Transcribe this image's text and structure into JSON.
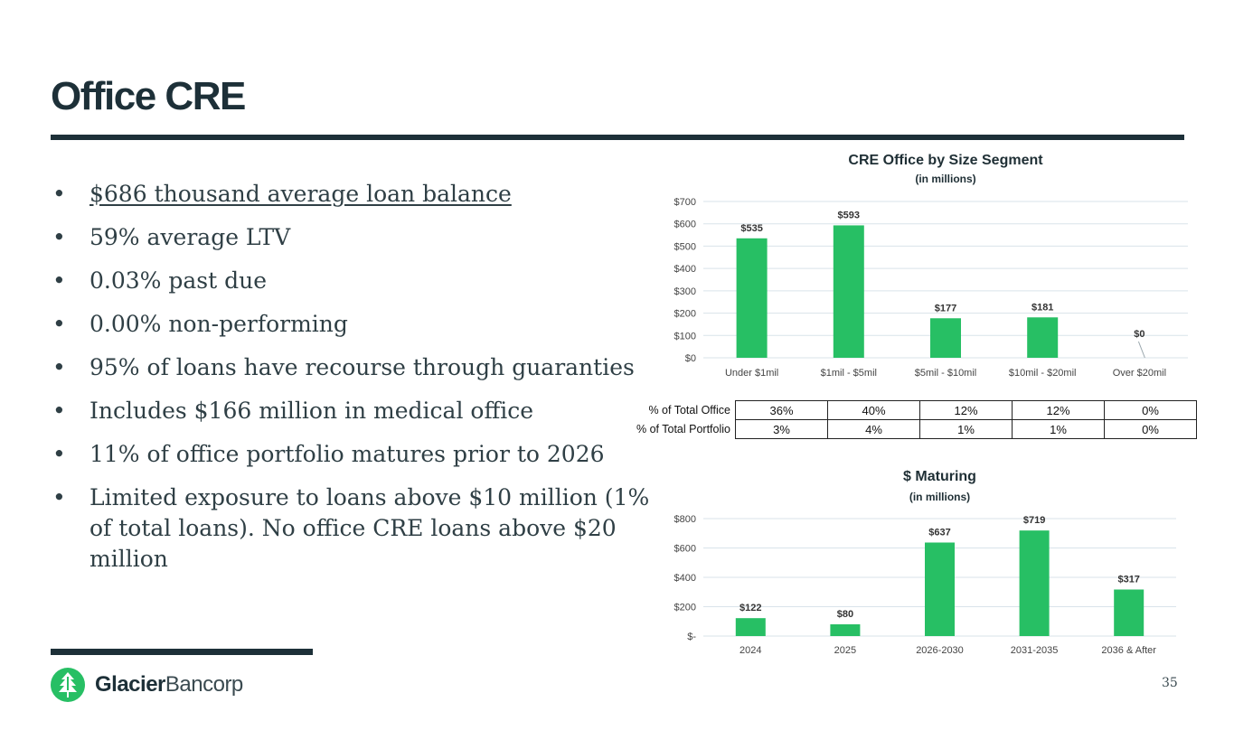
{
  "page": {
    "title": "Office CRE",
    "page_number": "35"
  },
  "bullets": [
    "$686 thousand average loan balance",
    "59% average LTV",
    "0.03% past due",
    "0.00% non-performing",
    "95% of loans have recourse through guaranties",
    "Includes $166 million in medical office",
    "11% of office portfolio matures prior to 2026",
    "Limited exposure to loans above $10 million (1% of total loans). No office CRE loans above $20 million"
  ],
  "bullet_symbol": "•",
  "logo": {
    "brand_bold": "Glacier",
    "brand_light": "Bancorp",
    "brand_color": "#27bf64"
  },
  "colors": {
    "bar": "#27bf64",
    "navy": "#1d3038"
  },
  "chart_data": [
    {
      "type": "bar",
      "title": "CRE Office by Size Segment",
      "subtitle": "(in millions)",
      "categories": [
        "Under $1mil",
        "$1mil - $5mil",
        "$5mil - $10mil",
        "$10mil - $20mil",
        "Over $20mil"
      ],
      "values": [
        535,
        593,
        177,
        181,
        0
      ],
      "data_labels": [
        "$535",
        "$593",
        "$177",
        "$181",
        "$0"
      ],
      "ylim": [
        0,
        700
      ],
      "yticks": [
        0,
        100,
        200,
        300,
        400,
        500,
        600,
        700
      ],
      "ytick_labels": [
        "$0",
        "$100",
        "$200",
        "$300",
        "$400",
        "$500",
        "$600",
        "$700"
      ],
      "grid": true,
      "xlabel": "",
      "ylabel": ""
    },
    {
      "type": "bar",
      "title": "$ Maturing",
      "subtitle": "(in millions)",
      "categories": [
        "2024",
        "2025",
        "2026-2030",
        "2031-2035",
        "2036 & After"
      ],
      "values": [
        122,
        80,
        637,
        719,
        317
      ],
      "data_labels": [
        "$122",
        "$80",
        "$637",
        "$719",
        "$317"
      ],
      "ylim": [
        0,
        800
      ],
      "yticks": [
        0,
        200,
        400,
        600,
        800
      ],
      "ytick_labels": [
        "$-",
        "$200",
        "$400",
        "$600",
        "$800"
      ],
      "grid": true,
      "xlabel": "",
      "ylabel": ""
    }
  ],
  "pct_table": {
    "rows": [
      {
        "label": "% of Total Office",
        "values": [
          "36%",
          "40%",
          "12%",
          "12%",
          "0%"
        ]
      },
      {
        "label": "% of Total Portfolio",
        "values": [
          "3%",
          "4%",
          "1%",
          "1%",
          "0%"
        ]
      }
    ]
  }
}
